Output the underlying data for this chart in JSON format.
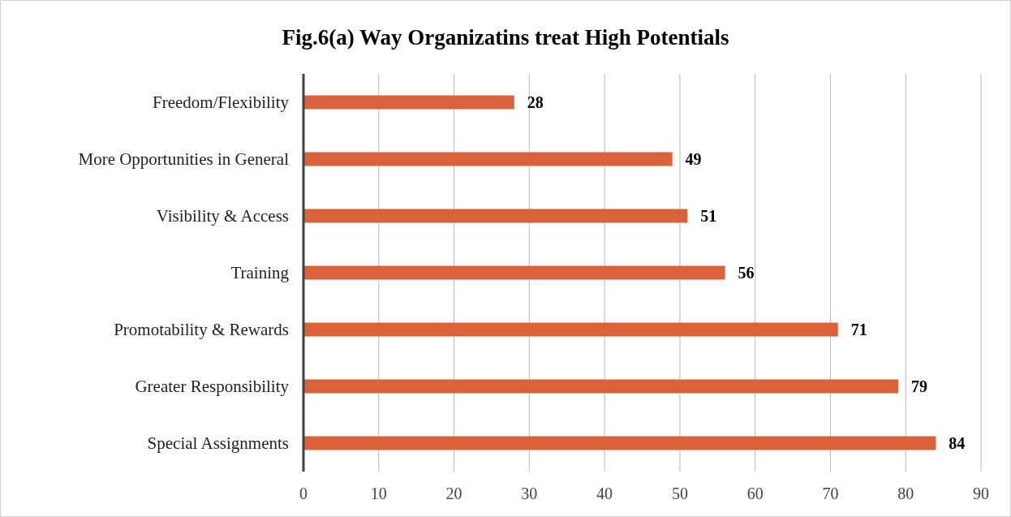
{
  "chart_data": {
    "type": "bar",
    "orientation": "horizontal",
    "title": "Fig.6(a) Way Organizatins treat High Potentials",
    "categories": [
      "Freedom/Flexibility",
      "More Opportunities in General",
      "Visibility & Access",
      "Training",
      "Promotability & Rewards",
      "Greater Responsibility",
      "Special Assignments"
    ],
    "values": [
      28,
      49,
      51,
      56,
      71,
      79,
      84
    ],
    "color": "#d9623b",
    "xlim": [
      0,
      90
    ],
    "xticks": [
      0,
      10,
      20,
      30,
      40,
      50,
      60,
      70,
      80,
      90
    ],
    "grid": "x",
    "data_labels": true
  }
}
